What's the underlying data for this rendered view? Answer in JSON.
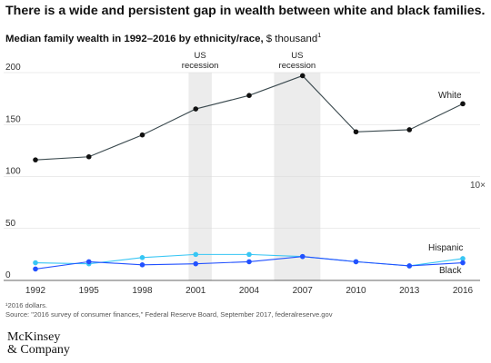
{
  "title": "There is a wide and persistent gap in wealth between white and black families.",
  "subtitle": {
    "bold": "Median family wealth in 1992–2016 by ethnicity/race,",
    "rest": " $ thousand",
    "sup": "1"
  },
  "footnote": {
    "line1": "¹2016 dollars.",
    "line2": " Source: \"2016 survey of consumer finances,\" Federal Reserve Board, September 2017, federalreserve.gov"
  },
  "logo": {
    "line1": "McKinsey",
    "line2": "& Company"
  },
  "chart_data": {
    "type": "line",
    "x": [
      1992,
      1995,
      1998,
      2001,
      2004,
      2007,
      2010,
      2013,
      2016
    ],
    "xticks": [
      "1992",
      "1995",
      "1998",
      "2001",
      "2004",
      "2007",
      "2010",
      "2013",
      "2016"
    ],
    "ylim": [
      0,
      200
    ],
    "yticks": [
      0,
      50,
      100,
      150,
      200
    ],
    "grid": true,
    "series": [
      {
        "name": "White",
        "values": [
          116,
          119,
          140,
          165,
          178,
          197,
          143,
          145,
          170
        ],
        "color": "#3b4a4f",
        "marker": "#111111"
      },
      {
        "name": "Hispanic",
        "values": [
          17,
          16,
          22,
          25,
          25,
          23,
          18,
          14,
          21
        ],
        "color": "#38c6f4",
        "marker": "#38c6f4"
      },
      {
        "name": "Black",
        "values": [
          11,
          18,
          15,
          16,
          18,
          23,
          18,
          14,
          17
        ],
        "color": "#2251ff",
        "marker": "#2251ff"
      }
    ],
    "recessions": [
      {
        "label_line1": "US",
        "label_line2": "recession",
        "start": 2000.6,
        "end": 2001.9
      },
      {
        "label_line1": "US",
        "label_line2": "recession",
        "start": 2005.4,
        "end": 2008.0
      }
    ],
    "annotation": "10×"
  }
}
